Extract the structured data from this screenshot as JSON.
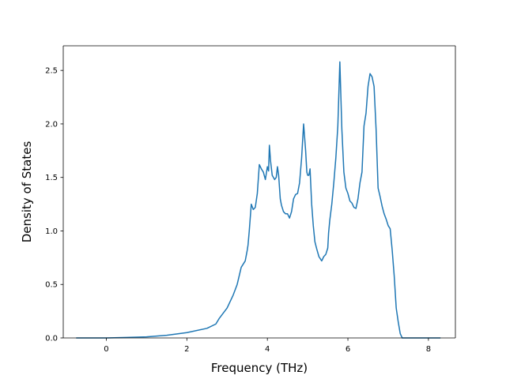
{
  "chart_data": {
    "type": "line",
    "title": "",
    "xlabel": "Frequency (THz)",
    "ylabel": "Density of States",
    "xlim": [
      -1.07,
      8.67
    ],
    "ylim": [
      0,
      2.73
    ],
    "xticks": [
      0,
      2,
      4,
      6,
      8
    ],
    "xtick_labels": [
      "0",
      "2",
      "4",
      "6",
      "8"
    ],
    "yticks": [
      0.0,
      0.5,
      1.0,
      1.5,
      2.0,
      2.5
    ],
    "ytick_labels": [
      "0.0",
      "0.5",
      "1.0",
      "1.5",
      "2.0",
      "2.5"
    ],
    "grid": false,
    "legend": "none",
    "series": [
      {
        "color": "#1f77b4",
        "x": [
          -0.75,
          0.0,
          0.5,
          1.0,
          1.5,
          2.0,
          2.5,
          2.72,
          2.8,
          3.0,
          3.15,
          3.25,
          3.35,
          3.45,
          3.5,
          3.52,
          3.55,
          3.6,
          3.65,
          3.7,
          3.75,
          3.8,
          3.85,
          3.9,
          3.95,
          4.0,
          4.03,
          4.05,
          4.08,
          4.12,
          4.18,
          4.22,
          4.25,
          4.28,
          4.32,
          4.35,
          4.4,
          4.45,
          4.5,
          4.55,
          4.6,
          4.65,
          4.7,
          4.75,
          4.8,
          4.85,
          4.9,
          4.95,
          4.98,
          5.0,
          5.03,
          5.06,
          5.1,
          5.14,
          5.18,
          5.22,
          5.28,
          5.35,
          5.4,
          5.45,
          5.5,
          5.52,
          5.55,
          5.6,
          5.65,
          5.7,
          5.75,
          5.8,
          5.85,
          5.9,
          5.95,
          6.0,
          6.05,
          6.1,
          6.15,
          6.2,
          6.25,
          6.3,
          6.35,
          6.4,
          6.45,
          6.5,
          6.55,
          6.6,
          6.65,
          6.7,
          6.75,
          6.8,
          6.85,
          6.9,
          6.95,
          7.0,
          7.05,
          7.1,
          7.15,
          7.2,
          7.25,
          7.3,
          7.35,
          7.4,
          7.45,
          7.5,
          7.55,
          7.6,
          7.7,
          8.0,
          8.3
        ],
        "y": [
          0.0,
          0.0,
          0.005,
          0.01,
          0.025,
          0.05,
          0.09,
          0.13,
          0.18,
          0.28,
          0.4,
          0.5,
          0.66,
          0.72,
          0.82,
          0.87,
          1.0,
          1.25,
          1.2,
          1.22,
          1.35,
          1.62,
          1.58,
          1.55,
          1.48,
          1.6,
          1.56,
          1.8,
          1.65,
          1.52,
          1.48,
          1.5,
          1.6,
          1.52,
          1.3,
          1.24,
          1.18,
          1.16,
          1.16,
          1.12,
          1.18,
          1.3,
          1.34,
          1.35,
          1.45,
          1.68,
          2.0,
          1.75,
          1.55,
          1.52,
          1.52,
          1.58,
          1.25,
          1.05,
          0.9,
          0.84,
          0.76,
          0.72,
          0.76,
          0.78,
          0.84,
          0.98,
          1.1,
          1.25,
          1.45,
          1.68,
          1.98,
          2.58,
          1.95,
          1.55,
          1.4,
          1.35,
          1.28,
          1.26,
          1.22,
          1.21,
          1.3,
          1.45,
          1.55,
          1.98,
          2.1,
          2.35,
          2.47,
          2.44,
          2.35,
          1.95,
          1.4,
          1.32,
          1.23,
          1.16,
          1.11,
          1.05,
          1.02,
          0.82,
          0.58,
          0.28,
          0.15,
          0.04,
          0.0,
          0.0,
          0.0,
          0.0,
          0.0,
          0.0,
          0.0,
          0.0,
          0.0
        ]
      }
    ]
  }
}
